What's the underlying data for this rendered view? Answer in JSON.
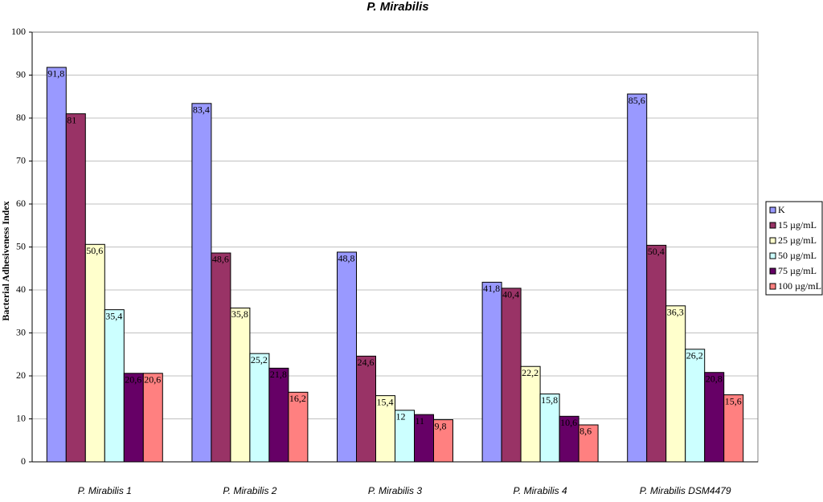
{
  "chart_data": {
    "type": "bar",
    "title": "P. Mirabilis",
    "y_label": "Bacterial Adhesiveness Index",
    "categories": [
      "P. Mirabilis 1",
      "P. Mirabilis 2",
      "P. Mirabilis 3",
      "P. Mirabilis 4",
      "P. Mirabilis DSM4479"
    ],
    "series": [
      {
        "name": "K",
        "color": "#9999ff",
        "values": [
          91.8,
          83.4,
          48.8,
          41.8,
          85.6
        ],
        "value_labels": [
          "91,8",
          "83,4",
          "48,8",
          "41,8",
          "85,6"
        ]
      },
      {
        "name": "15 µg/mL",
        "color": "#993366",
        "values": [
          81,
          48.6,
          24.6,
          40.4,
          50.4
        ],
        "value_labels": [
          "81",
          "48,6",
          "24,6",
          "40,4",
          "50,4"
        ]
      },
      {
        "name": "25 µg/mL",
        "color": "#ffffcc",
        "values": [
          50.6,
          35.8,
          15.4,
          22.2,
          36.3
        ],
        "value_labels": [
          "50,6",
          "35,8",
          "15,4",
          "22,2",
          "36,3"
        ]
      },
      {
        "name": "50 µg/mL",
        "color": "#ccffff",
        "values": [
          35.4,
          25.2,
          12,
          15.8,
          26.2
        ],
        "value_labels": [
          "35,4",
          "25,2",
          "12",
          "15,8",
          "26,2"
        ]
      },
      {
        "name": "75 µg/mL",
        "color": "#660066",
        "values": [
          20.6,
          21.8,
          11,
          10.6,
          20.8
        ],
        "value_labels": [
          "20,6",
          "21,8",
          "11",
          "10,6",
          "20,8"
        ]
      },
      {
        "name": "100 µg/mL",
        "color": "#ff8080",
        "values": [
          20.6,
          16.2,
          9.8,
          8.6,
          15.6
        ],
        "value_labels": [
          "20,6",
          "16,2",
          "9,8",
          "8,6",
          "15,6"
        ]
      }
    ],
    "ylim": [
      0,
      100
    ],
    "yticks": [
      0,
      10,
      20,
      30,
      40,
      50,
      60,
      70,
      80,
      90,
      100
    ],
    "grid": true,
    "legend": "right"
  }
}
